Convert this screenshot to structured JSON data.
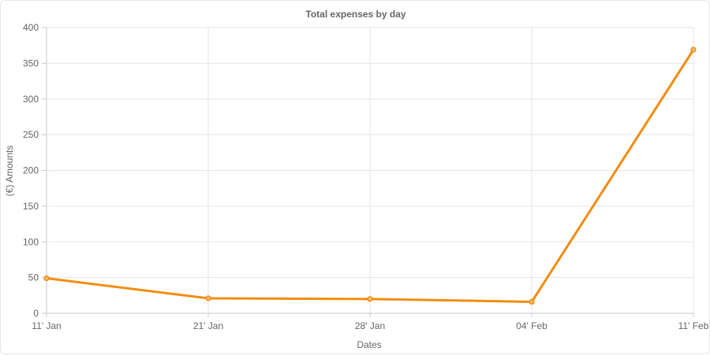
{
  "chart_data": {
    "type": "line",
    "title": "Total expenses by day",
    "xlabel": "Dates",
    "ylabel": "(€) Amounts",
    "categories": [
      "11' Jan",
      "21' Jan",
      "28' Jan",
      "04' Feb",
      "11' Feb"
    ],
    "series": [
      {
        "values": [
          49,
          21,
          20,
          16,
          369
        ]
      }
    ],
    "ylim": [
      0,
      400
    ],
    "yticks": [
      0,
      50,
      100,
      150,
      200,
      250,
      300,
      350,
      400
    ],
    "grid": true,
    "legend": "none",
    "colors": {
      "line": "#f28c0f",
      "point_fill": "#f7b468",
      "point_stroke": "#e8890a",
      "grid": "#e5e5e5",
      "text": "#666666"
    }
  }
}
